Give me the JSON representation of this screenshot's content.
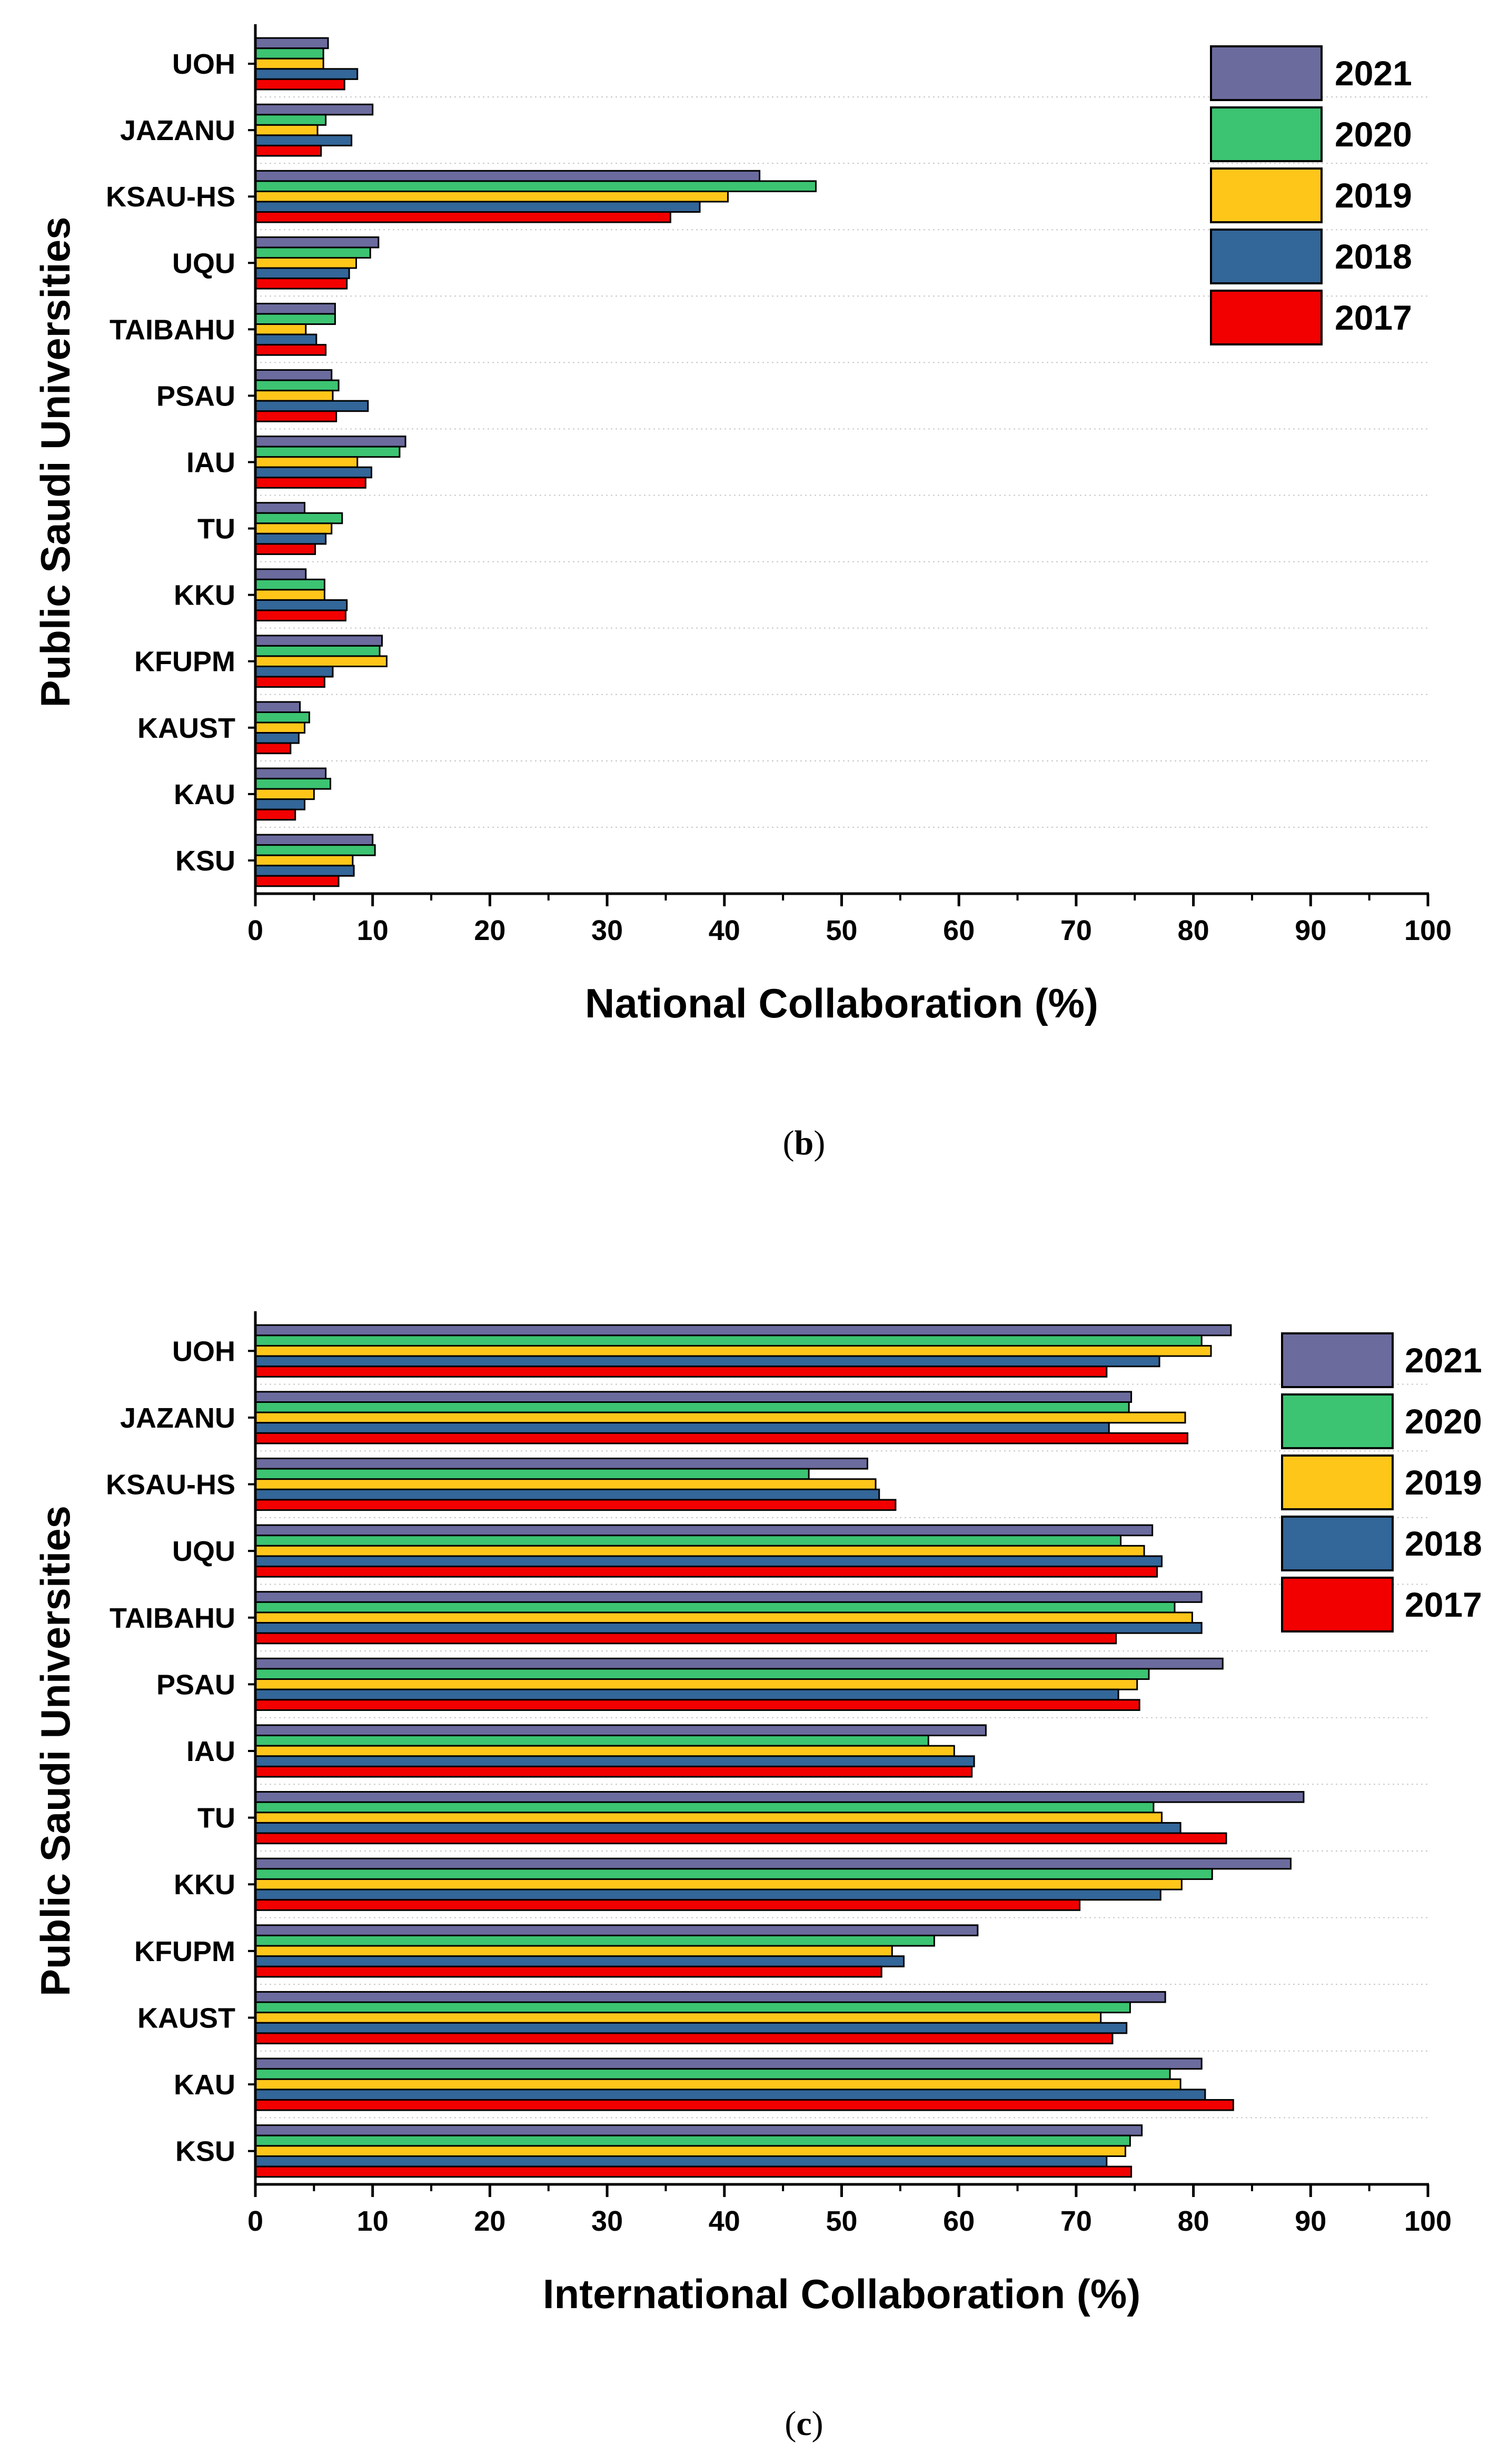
{
  "colors": {
    "2021": "#6b6b9e",
    "2020": "#3cc472",
    "2019": "#ffc61a",
    "2018": "#336699",
    "2017": "#f20000"
  },
  "chart_data": [
    {
      "type": "bar",
      "orientation": "horizontal",
      "caption_letter": "b",
      "xlabel": "National Collaboration (%)",
      "ylabel": "Public Saudi Universities",
      "xlim": [
        0,
        100
      ],
      "xticks": [
        0,
        10,
        20,
        30,
        40,
        50,
        60,
        70,
        80,
        90,
        100
      ],
      "legend_position": "top-right",
      "grid": "horizontal dotted separators between categories",
      "categories": [
        "UOH",
        "JAZANU",
        "KSAU-HS",
        "UQU",
        "TAIBAHU",
        "PSAU",
        "IAU",
        "TU",
        "KKU",
        "KFUPM",
        "KAUST",
        "KAU",
        "KSU"
      ],
      "series": [
        {
          "name": "2021",
          "color": "#6b6b9e",
          "values": [
            6.2,
            10.0,
            43.0,
            10.5,
            6.8,
            6.5,
            12.8,
            4.2,
            4.3,
            10.8,
            3.8,
            6.0,
            10.0
          ]
        },
        {
          "name": "2020",
          "color": "#3cc472",
          "values": [
            5.8,
            6.0,
            47.8,
            9.8,
            6.8,
            7.1,
            12.3,
            7.4,
            5.9,
            10.6,
            4.6,
            6.4,
            10.2
          ]
        },
        {
          "name": "2019",
          "color": "#ffc61a",
          "values": [
            5.8,
            5.3,
            40.3,
            8.6,
            4.3,
            6.6,
            8.7,
            6.5,
            5.9,
            11.2,
            4.2,
            5.0,
            8.3
          ]
        },
        {
          "name": "2018",
          "color": "#336699",
          "values": [
            8.7,
            8.2,
            37.9,
            8.0,
            5.2,
            9.6,
            9.9,
            6.0,
            7.8,
            6.6,
            3.7,
            4.2,
            8.4
          ]
        },
        {
          "name": "2017",
          "color": "#f20000",
          "values": [
            7.6,
            5.6,
            35.4,
            7.8,
            6.0,
            6.9,
            9.4,
            5.1,
            7.7,
            5.9,
            3.0,
            3.4,
            7.1
          ]
        }
      ]
    },
    {
      "type": "bar",
      "orientation": "horizontal",
      "caption_letter": "c",
      "xlabel": "International Collaboration (%)",
      "ylabel": "Public Saudi Universities",
      "xlim": [
        0,
        100
      ],
      "xticks": [
        0,
        10,
        20,
        30,
        40,
        50,
        60,
        70,
        80,
        90,
        100
      ],
      "legend_position": "top-right",
      "grid": "horizontal dotted separators between categories",
      "categories": [
        "UOH",
        "JAZANU",
        "KSAU-HS",
        "UQU",
        "TAIBAHU",
        "PSAU",
        "IAU",
        "TU",
        "KKU",
        "KFUPM",
        "KAUST",
        "KAU",
        "KSU"
      ],
      "series": [
        {
          "name": "2021",
          "color": "#6b6b9e",
          "values": [
            83.2,
            74.7,
            52.2,
            76.5,
            80.7,
            82.5,
            62.3,
            89.4,
            88.3,
            61.6,
            77.6,
            80.7,
            75.6
          ]
        },
        {
          "name": "2020",
          "color": "#3cc472",
          "values": [
            80.7,
            74.5,
            47.2,
            73.8,
            78.4,
            76.2,
            57.4,
            76.6,
            81.6,
            57.9,
            74.6,
            78.0,
            74.6
          ]
        },
        {
          "name": "2019",
          "color": "#ffc61a",
          "values": [
            81.5,
            79.3,
            52.9,
            75.8,
            79.9,
            75.2,
            59.6,
            77.3,
            79.0,
            54.3,
            72.1,
            78.9,
            74.2
          ]
        },
        {
          "name": "2018",
          "color": "#336699",
          "values": [
            77.1,
            72.8,
            53.2,
            77.3,
            80.7,
            73.6,
            61.3,
            78.9,
            77.2,
            55.3,
            74.3,
            81.0,
            72.6
          ]
        },
        {
          "name": "2017",
          "color": "#f20000",
          "values": [
            72.6,
            79.5,
            54.6,
            76.9,
            73.4,
            75.4,
            61.1,
            82.8,
            70.3,
            53.4,
            73.1,
            83.4,
            74.7
          ]
        }
      ]
    }
  ]
}
